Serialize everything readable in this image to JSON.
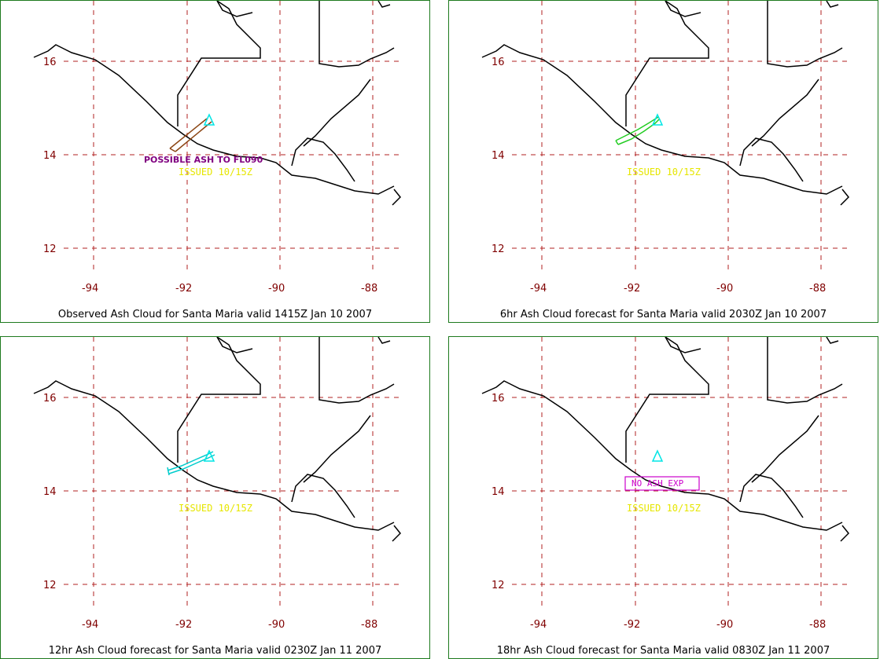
{
  "panels": [
    {
      "caption": "Observed Ash Cloud for Santa  Maria valid 1415Z Jan 10 2007",
      "issued": "ISSUED 10/15Z",
      "ash_label": "POSSIBLE ASH TO FL090",
      "ash_color": "#8b4513",
      "box_label": ""
    },
    {
      "caption": "6hr Ash Cloud forecast for Santa  Maria valid 2030Z Jan 10 2007",
      "issued": "ISSUED 10/15Z",
      "ash_label": "",
      "ash_color": "#22cc22",
      "box_label": ""
    },
    {
      "caption": "12hr Ash Cloud forecast for Santa  Maria valid 0230Z Jan 11 2007",
      "issued": "ISSUED 10/15Z",
      "ash_label": "",
      "ash_color": "#00cccc",
      "box_label": ""
    },
    {
      "caption": "18hr Ash Cloud forecast for Santa  Maria valid 0830Z Jan 11 2007",
      "issued": "ISSUED 10/15Z",
      "ash_label": "",
      "ash_color": "",
      "box_label": "NO ASH EXP"
    }
  ],
  "map": {
    "lon_ticks": [
      "-94",
      "-92",
      "-90",
      "-88"
    ],
    "lat_ticks": [
      "16",
      "14",
      "12"
    ],
    "grid_color": "#b22222",
    "coast_color": "#000000",
    "volcano_color": "#00e5e5",
    "volcano_icon": "triangle-icon"
  }
}
